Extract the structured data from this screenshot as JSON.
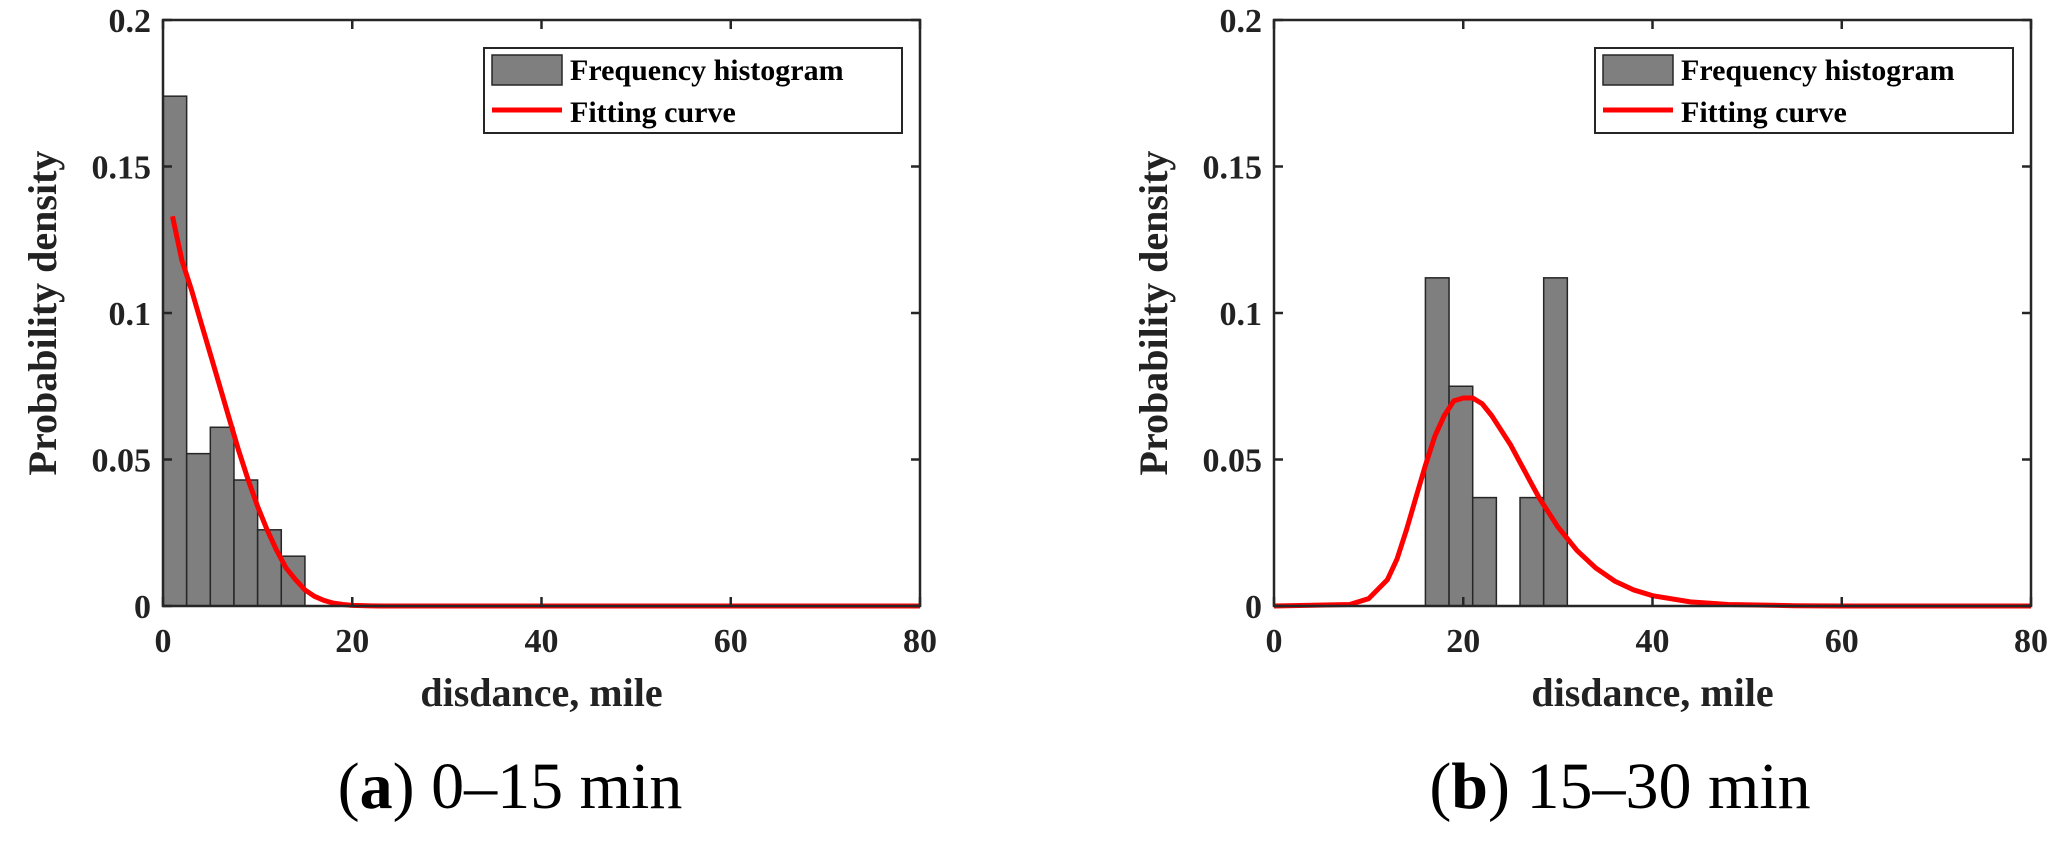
{
  "chart_data": [
    {
      "type": "bar",
      "caption": {
        "open": "(",
        "letter": "a",
        "close": ")",
        "rest": " 0–15 min"
      },
      "xlabel": "disdance, mile",
      "ylabel": "Probability density",
      "xlim": [
        0,
        80
      ],
      "ylim": [
        0,
        0.2
      ],
      "xticks": [
        "0",
        "20",
        "40",
        "60",
        "80"
      ],
      "yticks": [
        "0",
        "0.05",
        "0.1",
        "0.15",
        "0.2"
      ],
      "bin_width": 2.5,
      "bins": [
        {
          "start": 0,
          "value": 0.174
        },
        {
          "start": 2.5,
          "value": 0.052
        },
        {
          "start": 5,
          "value": 0.061
        },
        {
          "start": 7.5,
          "value": 0.043
        },
        {
          "start": 10,
          "value": 0.026
        },
        {
          "start": 12.5,
          "value": 0.017
        }
      ],
      "curve": {
        "x": [
          1,
          2,
          3,
          4,
          5,
          6,
          7,
          8,
          9,
          10,
          11,
          12,
          13,
          14,
          15,
          16,
          17,
          18,
          19,
          20,
          22,
          24,
          26,
          30,
          40,
          50,
          60,
          70,
          80
        ],
        "y": [
          0.133,
          0.118,
          0.108,
          0.097,
          0.086,
          0.075,
          0.064,
          0.053,
          0.043,
          0.034,
          0.026,
          0.019,
          0.013,
          0.009,
          0.0055,
          0.0033,
          0.0019,
          0.001,
          0.0005,
          0.0002,
          5e-05,
          1e-05,
          0,
          0,
          0,
          0,
          0,
          0,
          0
        ]
      },
      "legend": {
        "position": "top-right",
        "items": [
          "Frequency histogram",
          "Fitting curve"
        ]
      },
      "colors": {
        "bar": "#7f7f7f",
        "curve": "#ff0000"
      },
      "grid": false
    },
    {
      "type": "bar",
      "caption": {
        "open": "(",
        "letter": "b",
        "close": ")",
        "rest": " 15–30 min"
      },
      "xlabel": "disdance, mile",
      "ylabel": "Probability density",
      "xlim": [
        0,
        80
      ],
      "ylim": [
        0,
        0.2
      ],
      "xticks": [
        "0",
        "20",
        "40",
        "60",
        "80"
      ],
      "yticks": [
        "0",
        "0.05",
        "0.1",
        "0.15",
        "0.2"
      ],
      "bin_width": 2.5,
      "bins": [
        {
          "start": 16,
          "value": 0.112
        },
        {
          "start": 18.5,
          "value": 0.075
        },
        {
          "start": 21,
          "value": 0.037
        },
        {
          "start": 26,
          "value": 0.037
        },
        {
          "start": 28.5,
          "value": 0.112
        }
      ],
      "curve": {
        "x": [
          0,
          8,
          10,
          12,
          13,
          14,
          15,
          16,
          17,
          18,
          19,
          20,
          21,
          22,
          23,
          24,
          25,
          26,
          27,
          28,
          29,
          30,
          32,
          34,
          36,
          38,
          40,
          44,
          48,
          55,
          60,
          70,
          80
        ],
        "y": [
          0,
          0.0005,
          0.0025,
          0.009,
          0.016,
          0.026,
          0.037,
          0.048,
          0.058,
          0.065,
          0.07,
          0.071,
          0.071,
          0.069,
          0.065,
          0.06,
          0.055,
          0.049,
          0.043,
          0.037,
          0.032,
          0.027,
          0.019,
          0.013,
          0.0085,
          0.0055,
          0.0035,
          0.0014,
          0.0005,
          0.0001,
          0,
          0,
          0
        ]
      },
      "legend": {
        "position": "top-right",
        "items": [
          "Frequency histogram",
          "Fitting curve"
        ]
      },
      "colors": {
        "bar": "#7f7f7f",
        "curve": "#ff0000"
      },
      "grid": false
    }
  ]
}
